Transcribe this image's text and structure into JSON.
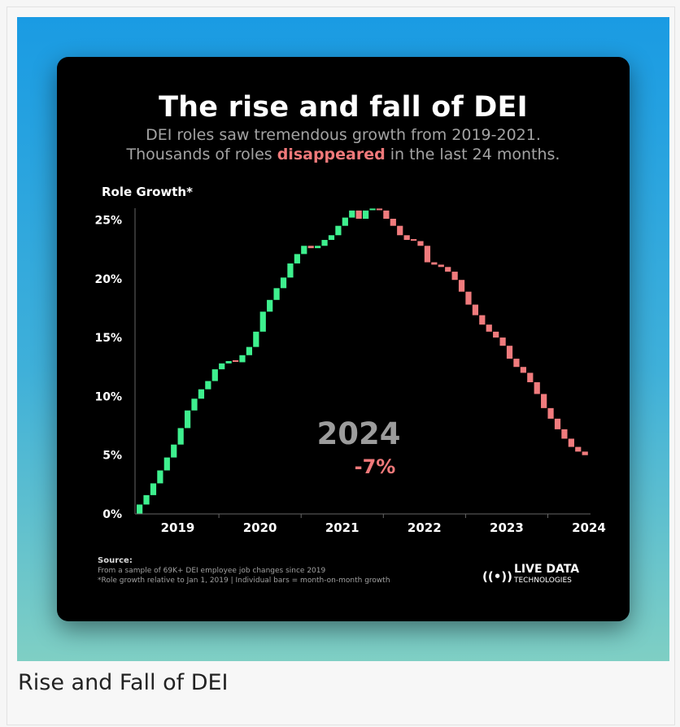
{
  "caption": "Rise and Fall of DEI",
  "colors": {
    "up": "#3ef08e",
    "down": "#f07b7d",
    "highlight": "#f0797a"
  },
  "chart_data": {
    "type": "bar",
    "title": "The rise and fall of DEI",
    "subtitle_parts": [
      "DEI roles saw tremendous growth from 2019-2021.",
      "Thousands of roles ",
      "disappeared",
      " in the last 24 months."
    ],
    "ylabel": "Role Growth*",
    "ylim": [
      0,
      26
    ],
    "yticks": [
      "0%",
      "5%",
      "10%",
      "15%",
      "20%",
      "25%"
    ],
    "x_tick_labels": [
      "2019",
      "2020",
      "2021",
      "2022",
      "2023",
      "2024"
    ],
    "annotation_year": "2024",
    "annotation_value": "-7%",
    "source_label": "Source:",
    "source_lines": [
      "From a sample of 69K+ DEI employee job changes since 2019",
      "*Role growth relative to Jan 1, 2019 | Individual bars = month-on-month growth"
    ],
    "logo": {
      "line1": "LIVE DATA",
      "line2": "TECHNOLOGIES",
      "symbol": "((•))"
    },
    "series": [
      {
        "values": [
          0.0,
          0.8,
          1.6,
          2.6,
          3.7,
          4.8,
          5.9,
          7.3,
          8.8,
          9.8,
          10.6,
          11.3,
          12.3,
          12.8,
          13.0,
          12.9,
          13.5,
          14.2,
          15.5,
          17.2,
          18.2,
          19.2,
          20.1,
          21.3,
          22.1,
          22.8,
          22.6,
          22.8,
          23.3,
          23.7,
          24.5,
          25.2,
          25.8,
          25.1,
          25.8,
          25.9,
          25.8,
          25.1,
          24.5,
          23.7,
          23.3,
          23.2,
          22.8,
          21.4,
          21.2,
          21.0,
          20.6,
          19.9,
          18.9,
          17.8,
          16.9,
          16.1,
          15.5,
          15.0,
          14.3,
          13.2,
          12.5,
          12.0,
          11.2,
          10.2,
          9.0,
          8.1,
          7.2,
          6.4,
          5.7,
          5.3,
          5.0
        ]
      }
    ]
  }
}
